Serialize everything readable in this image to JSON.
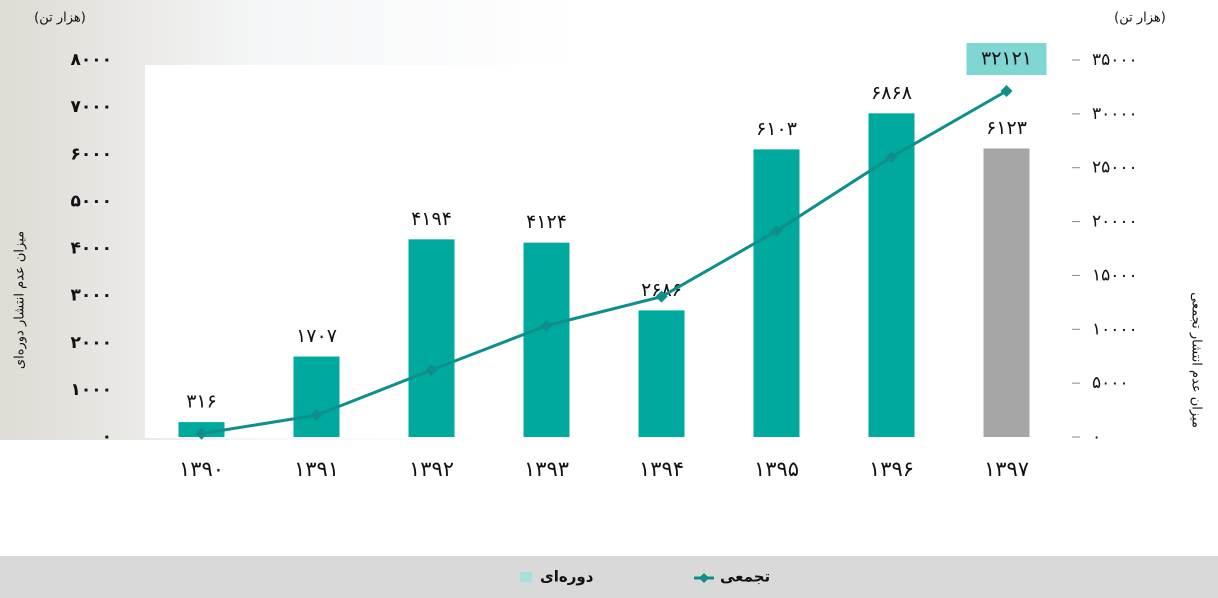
{
  "chart_data": {
    "type": "bar_line",
    "y_unit_label": "(هزار تن)",
    "y2_unit_label": "(هزار تن)",
    "ylabel": "میزان عدم انتشار دوره‌ای",
    "y2label": "میزان عدم انتشار تجمعی",
    "categories": [
      "۱۳۹۰",
      "۱۳۹۱",
      "۱۳۹۲",
      "۱۳۹۳",
      "۱۳۹۴",
      "۱۳۹۵",
      "۱۳۹۶",
      "۱۳۹۷"
    ],
    "series": [
      {
        "name": "دوره‌ای",
        "kind": "bar",
        "color": "#00a99d",
        "colors": [
          "#00a99d",
          "#00a99d",
          "#00a99d",
          "#00a99d",
          "#00a99d",
          "#00a99d",
          "#00a99d",
          "#a6a6a6"
        ],
        "values": [
          316,
          1707,
          4194,
          4124,
          2686,
          6103,
          6868,
          6123
        ],
        "value_labels": [
          "۳۱۶",
          "۱۷۰۷",
          "۴۱۹۴",
          "۴۱۲۴",
          "۲۶۸۶",
          "۶۱۰۳",
          "۶۸۶۸",
          "۶۱۲۳"
        ]
      },
      {
        "name": "تجمعی",
        "kind": "line",
        "axis": "y2",
        "color": "#0e8f8c",
        "values": [
          316,
          2023,
          6217,
          10341,
          13027,
          19130,
          25998,
          32121
        ],
        "value_labels": [
          null,
          null,
          null,
          null,
          null,
          null,
          null,
          "۳۲۱۲۱"
        ]
      }
    ],
    "ylim": [
      0,
      8000
    ],
    "yticks": [
      {
        "value": 0,
        "label": "۰"
      },
      {
        "value": 1000,
        "label": "۱۰۰۰"
      },
      {
        "value": 2000,
        "label": "۲۰۰۰"
      },
      {
        "value": 3000,
        "label": "۳۰۰۰"
      },
      {
        "value": 4000,
        "label": "۴۰۰۰"
      },
      {
        "value": 5000,
        "label": "۵۰۰۰"
      },
      {
        "value": 6000,
        "label": "۶۰۰۰"
      },
      {
        "value": 7000,
        "label": "۷۰۰۰"
      },
      {
        "value": 8000,
        "label": "۸۰۰۰"
      }
    ],
    "y2lim": [
      0,
      35000
    ],
    "y2ticks": [
      {
        "value": 0,
        "label": "۰"
      },
      {
        "value": 5000,
        "label": "۵۰۰۰"
      },
      {
        "value": 10000,
        "label": "۱۰۰۰۰"
      },
      {
        "value": 15000,
        "label": "۱۵۰۰۰"
      },
      {
        "value": 20000,
        "label": "۲۰۰۰۰"
      },
      {
        "value": 25000,
        "label": "۲۵۰۰۰"
      },
      {
        "value": 30000,
        "label": "۳۰۰۰۰"
      },
      {
        "value": 35000,
        "label": "۳۵۰۰۰"
      }
    ]
  }
}
